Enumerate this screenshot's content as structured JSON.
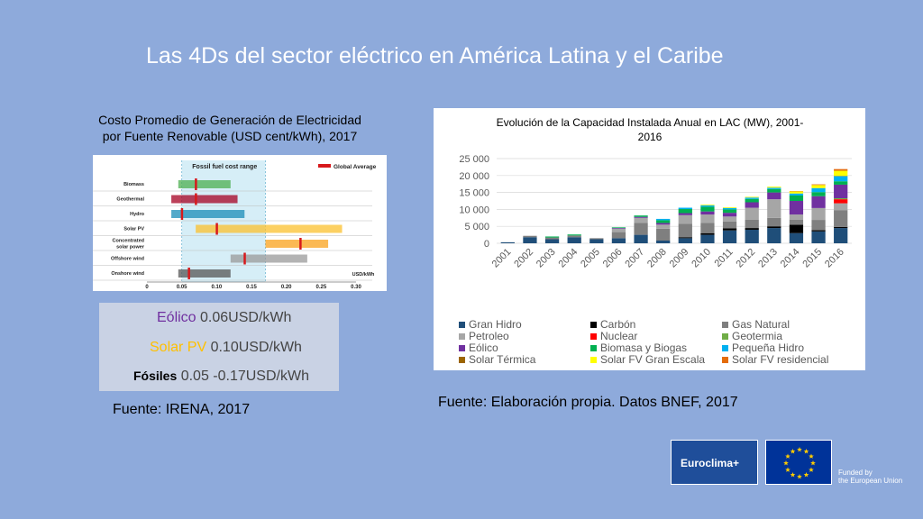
{
  "title": "Las 4Ds del sector eléctrico en América Latina y el Caribe",
  "left": {
    "title_line1": "Costo Promedio de Generación de Electricidad",
    "title_line2": "por Fuente Renovable (USD cent/kWh), 2017",
    "source": "Fuente: IRENA, 2017"
  },
  "summary": {
    "eolico_key": "Eólico",
    "eolico_val": " 0.06USD/kWh",
    "solar_key": "Solar PV",
    "solar_val": " 0.10USD/kWh",
    "fosil_key": "Fósiles",
    "fosil_val": " 0.05 -0.17USD/kWh"
  },
  "right": {
    "source": "Fuente: Elaboración propia. Datos BNEF, 2017"
  },
  "logos": {
    "euroclima": "Euroclima+",
    "funded_line1": "Funded by",
    "funded_line2": "the European Union"
  },
  "chart_data": [
    {
      "type": "bar",
      "orientation": "horizontal",
      "header": "Fossil fuel cost range",
      "legend": "Global Average",
      "xlabel": "USD/kWh",
      "xlim": [
        0,
        0.3
      ],
      "xticks": [
        "0",
        "0.05",
        "0.10",
        "0.15",
        "0.20",
        "0.25",
        "0.30"
      ],
      "fossil_range": [
        0.05,
        0.17
      ],
      "categories": [
        "Biomass",
        "Geothermal",
        "Hydro",
        "Solar PV",
        "Concentrated solar power",
        "Offshore wind",
        "Onshore wind"
      ],
      "ranges": [
        [
          0.045,
          0.12
        ],
        [
          0.035,
          0.13
        ],
        [
          0.035,
          0.14
        ],
        [
          0.07,
          0.28
        ],
        [
          0.17,
          0.26
        ],
        [
          0.12,
          0.23
        ],
        [
          0.045,
          0.12
        ]
      ],
      "averages": [
        0.07,
        0.07,
        0.05,
        0.1,
        0.22,
        0.14,
        0.06
      ],
      "colors": [
        "#4caf50",
        "#a50021",
        "#1a8cb8",
        "#fbc02d",
        "#f9a11b",
        "#999999",
        "#555555"
      ],
      "avg_color": "#d7191c"
    },
    {
      "type": "bar",
      "stacked": true,
      "title_line1": "Evolución de la Capacidad Instalada Anual en LAC (MW), 2001-",
      "title_line2": "2016",
      "categories": [
        "2001",
        "2002",
        "2003",
        "2004",
        "2005",
        "2006",
        "2007",
        "2008",
        "2009",
        "2010",
        "2011",
        "2012",
        "2013",
        "2014",
        "2015",
        "2016"
      ],
      "ylim": [
        0,
        25000
      ],
      "yticks": [
        "0",
        "5 000",
        "10 000",
        "15 000",
        "20 000",
        "25 000"
      ],
      "series": [
        {
          "name": "Gran Hidro",
          "color": "#1f4e79",
          "values": [
            300,
            1800,
            1200,
            1800,
            1200,
            1500,
            2500,
            800,
            1500,
            2500,
            3800,
            4000,
            4500,
            3000,
            3500,
            4500
          ]
        },
        {
          "name": "Carbón",
          "color": "#000000",
          "values": [
            0,
            0,
            0,
            0,
            0,
            0,
            0,
            0,
            300,
            500,
            600,
            500,
            500,
            2500,
            400,
            300
          ]
        },
        {
          "name": "Gas Natural",
          "color": "#7f7f7f",
          "values": [
            0,
            400,
            500,
            500,
            300,
            1800,
            3500,
            3500,
            4000,
            3000,
            2000,
            2500,
            2500,
            1500,
            3000,
            5000
          ]
        },
        {
          "name": "Petroleo",
          "color": "#a6a6a6",
          "values": [
            0,
            0,
            0,
            0,
            0,
            1000,
            1500,
            1200,
            2500,
            2500,
            1500,
            3500,
            5500,
            1500,
            3500,
            2000
          ]
        },
        {
          "name": "Nuclear",
          "color": "#ff0000",
          "values": [
            0,
            0,
            0,
            0,
            0,
            0,
            0,
            0,
            0,
            0,
            0,
            0,
            0,
            0,
            0,
            1200
          ]
        },
        {
          "name": "Geotermia",
          "color": "#70ad47",
          "values": [
            0,
            0,
            0,
            0,
            0,
            0,
            0,
            0,
            0,
            0,
            0,
            0,
            0,
            0,
            0,
            300
          ]
        },
        {
          "name": "Eólico",
          "color": "#7030a0",
          "values": [
            0,
            0,
            0,
            0,
            0,
            200,
            300,
            500,
            600,
            900,
            1100,
            1600,
            2000,
            4000,
            3500,
            4000
          ]
        },
        {
          "name": "Biomasa y Biogas",
          "color": "#00b050",
          "values": [
            0,
            0,
            300,
            300,
            0,
            200,
            400,
            800,
            1200,
            1400,
            1000,
            1000,
            1000,
            1600,
            1200,
            1000
          ]
        },
        {
          "name": "Pequeña Hidro",
          "color": "#00b0f0",
          "values": [
            0,
            0,
            0,
            0,
            0,
            0,
            0,
            400,
            400,
            400,
            400,
            400,
            400,
            600,
            1200,
            1500
          ]
        },
        {
          "name": "Solar Térmica",
          "color": "#9c6500",
          "values": [
            0,
            0,
            0,
            0,
            0,
            0,
            0,
            0,
            0,
            0,
            0,
            0,
            0,
            0,
            0,
            100
          ]
        },
        {
          "name": "Solar FV Gran Escala",
          "color": "#ffff00",
          "values": [
            0,
            0,
            0,
            0,
            0,
            0,
            0,
            0,
            0,
            200,
            200,
            200,
            300,
            600,
            900,
            1500
          ]
        },
        {
          "name": "Solar FV residencial",
          "color": "#e46c0a",
          "values": [
            0,
            0,
            0,
            0,
            0,
            0,
            0,
            0,
            0,
            0,
            0,
            0,
            0,
            100,
            200,
            500
          ]
        }
      ]
    }
  ]
}
